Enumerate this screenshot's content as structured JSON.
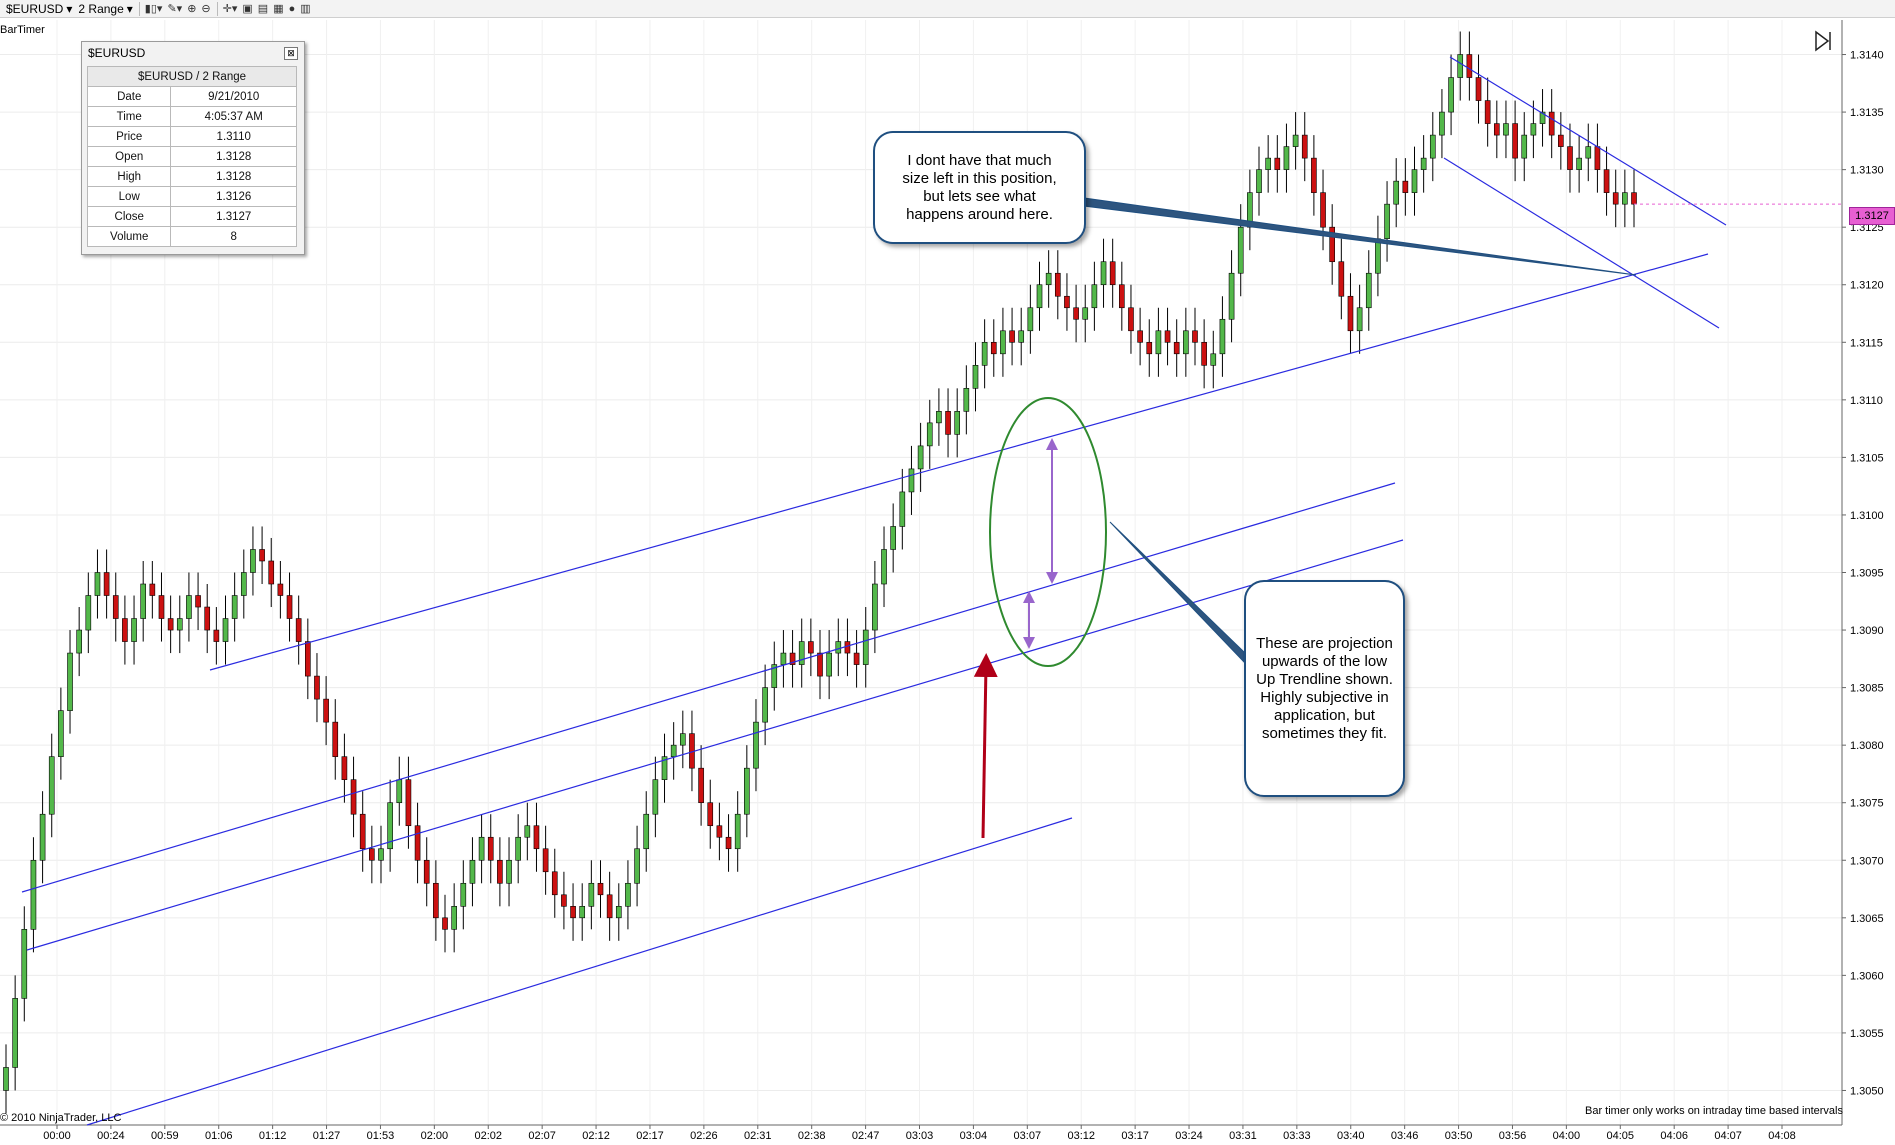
{
  "toolbar": {
    "instrument": "$EURUSD",
    "period": "2 Range",
    "icons": [
      "candlestick-icon",
      "pencil-icon",
      "zoom-in-icon",
      "zoom-out-icon",
      "crosshair-icon",
      "data-box-icon",
      "folder-icon",
      "chart-properties-icon",
      "coin-icon",
      "save-icon"
    ]
  },
  "indicator_label": "BarTimer",
  "data_box": {
    "title": "$EURUSD",
    "header": "$EURUSD / 2 Range",
    "rows": [
      {
        "label": "Date",
        "value": "9/21/2010"
      },
      {
        "label": "Time",
        "value": "4:05:37 AM"
      },
      {
        "label": "Price",
        "value": "1.3110"
      },
      {
        "label": "Open",
        "value": "1.3128"
      },
      {
        "label": "High",
        "value": "1.3128"
      },
      {
        "label": "Low",
        "value": "1.3126"
      },
      {
        "label": "Close",
        "value": "1.3127"
      },
      {
        "label": "Volume",
        "value": "8"
      }
    ]
  },
  "annotations": {
    "callout_top": "I dont have that much size left in this position, but lets see what happens around here.",
    "callout_right": "These are projection upwards of the low Up Trendline shown. Highly subjective in application, but sometimes they fit."
  },
  "footer": {
    "bar_timer_note": "Bar timer only works on intraday time based intervals",
    "copyright": "© 2010 NinjaTrader, LLC"
  },
  "colors": {
    "up_candle": "#53b84a",
    "down_candle": "#cc1111",
    "trendline": "#2a2ae0",
    "ellipse": "#2f8a2f",
    "arrow_red": "#b00018",
    "arrow_purple": "#9966cc",
    "price_marker": "#e75fd2"
  },
  "chart_data": {
    "type": "candlestick",
    "instrument": "$EURUSD",
    "bar_type": "2 Range",
    "y_ticks": [
      "1.3140",
      "1.3135",
      "1.3130",
      "1.3125",
      "1.3120",
      "1.3115",
      "1.3110",
      "1.3105",
      "1.3100",
      "1.3095",
      "1.3090",
      "1.3085",
      "1.3080",
      "1.3075",
      "1.3070",
      "1.3065",
      "1.3060",
      "1.3055",
      "1.3050"
    ],
    "ylim": [
      1.3047,
      1.3143
    ],
    "x_ticks": [
      "00:00",
      "00:24",
      "00:59",
      "01:06",
      "01:12",
      "01:27",
      "01:53",
      "02:00",
      "02:02",
      "02:07",
      "02:12",
      "02:17",
      "02:26",
      "02:31",
      "02:38",
      "02:47",
      "03:03",
      "03:04",
      "03:07",
      "03:12",
      "03:17",
      "03:24",
      "03:31",
      "03:33",
      "03:40",
      "03:46",
      "03:50",
      "03:56",
      "04:00",
      "04:05",
      "04:06",
      "04:07",
      "04:08"
    ],
    "last_price": "1.3127",
    "closes": [
      1.3052,
      1.3058,
      1.3064,
      1.307,
      1.3074,
      1.3079,
      1.3083,
      1.3088,
      1.309,
      1.3093,
      1.3095,
      1.3093,
      1.3091,
      1.3089,
      1.3091,
      1.3094,
      1.3093,
      1.3091,
      1.309,
      1.3091,
      1.3093,
      1.3092,
      1.309,
      1.3089,
      1.3091,
      1.3093,
      1.3095,
      1.3097,
      1.3096,
      1.3094,
      1.3093,
      1.3091,
      1.3089,
      1.3086,
      1.3084,
      1.3082,
      1.3079,
      1.3077,
      1.3074,
      1.3071,
      1.307,
      1.3071,
      1.3075,
      1.3077,
      1.3073,
      1.307,
      1.3068,
      1.3065,
      1.3064,
      1.3066,
      1.3068,
      1.307,
      1.3072,
      1.307,
      1.3068,
      1.307,
      1.3072,
      1.3073,
      1.3071,
      1.3069,
      1.3067,
      1.3066,
      1.3065,
      1.3066,
      1.3068,
      1.3067,
      1.3065,
      1.3066,
      1.3068,
      1.3071,
      1.3074,
      1.3077,
      1.3079,
      1.308,
      1.3081,
      1.3078,
      1.3075,
      1.3073,
      1.3072,
      1.3071,
      1.3074,
      1.3078,
      1.3082,
      1.3085,
      1.3087,
      1.3088,
      1.3087,
      1.3089,
      1.3088,
      1.3086,
      1.3088,
      1.3089,
      1.3088,
      1.3087,
      1.309,
      1.3094,
      1.3097,
      1.3099,
      1.3102,
      1.3104,
      1.3106,
      1.3108,
      1.3109,
      1.3107,
      1.3109,
      1.3111,
      1.3113,
      1.3115,
      1.3114,
      1.3116,
      1.3115,
      1.3116,
      1.3118,
      1.312,
      1.3121,
      1.3119,
      1.3118,
      1.3117,
      1.3118,
      1.312,
      1.3122,
      1.312,
      1.3118,
      1.3116,
      1.3115,
      1.3114,
      1.3116,
      1.3115,
      1.3114,
      1.3116,
      1.3115,
      1.3113,
      1.3114,
      1.3117,
      1.3121,
      1.3125,
      1.3128,
      1.313,
      1.3131,
      1.313,
      1.3132,
      1.3133,
      1.3131,
      1.3128,
      1.3125,
      1.3122,
      1.3119,
      1.3116,
      1.3118,
      1.3121,
      1.3124,
      1.3127,
      1.3129,
      1.3128,
      1.313,
      1.3131,
      1.3133,
      1.3135,
      1.3138,
      1.314,
      1.3138,
      1.3136,
      1.3134,
      1.3133,
      1.3134,
      1.3131,
      1.3133,
      1.3134,
      1.3135,
      1.3133,
      1.3132,
      1.313,
      1.3131,
      1.3132,
      1.313,
      1.3128,
      1.3127,
      1.3128,
      1.3127
    ]
  }
}
